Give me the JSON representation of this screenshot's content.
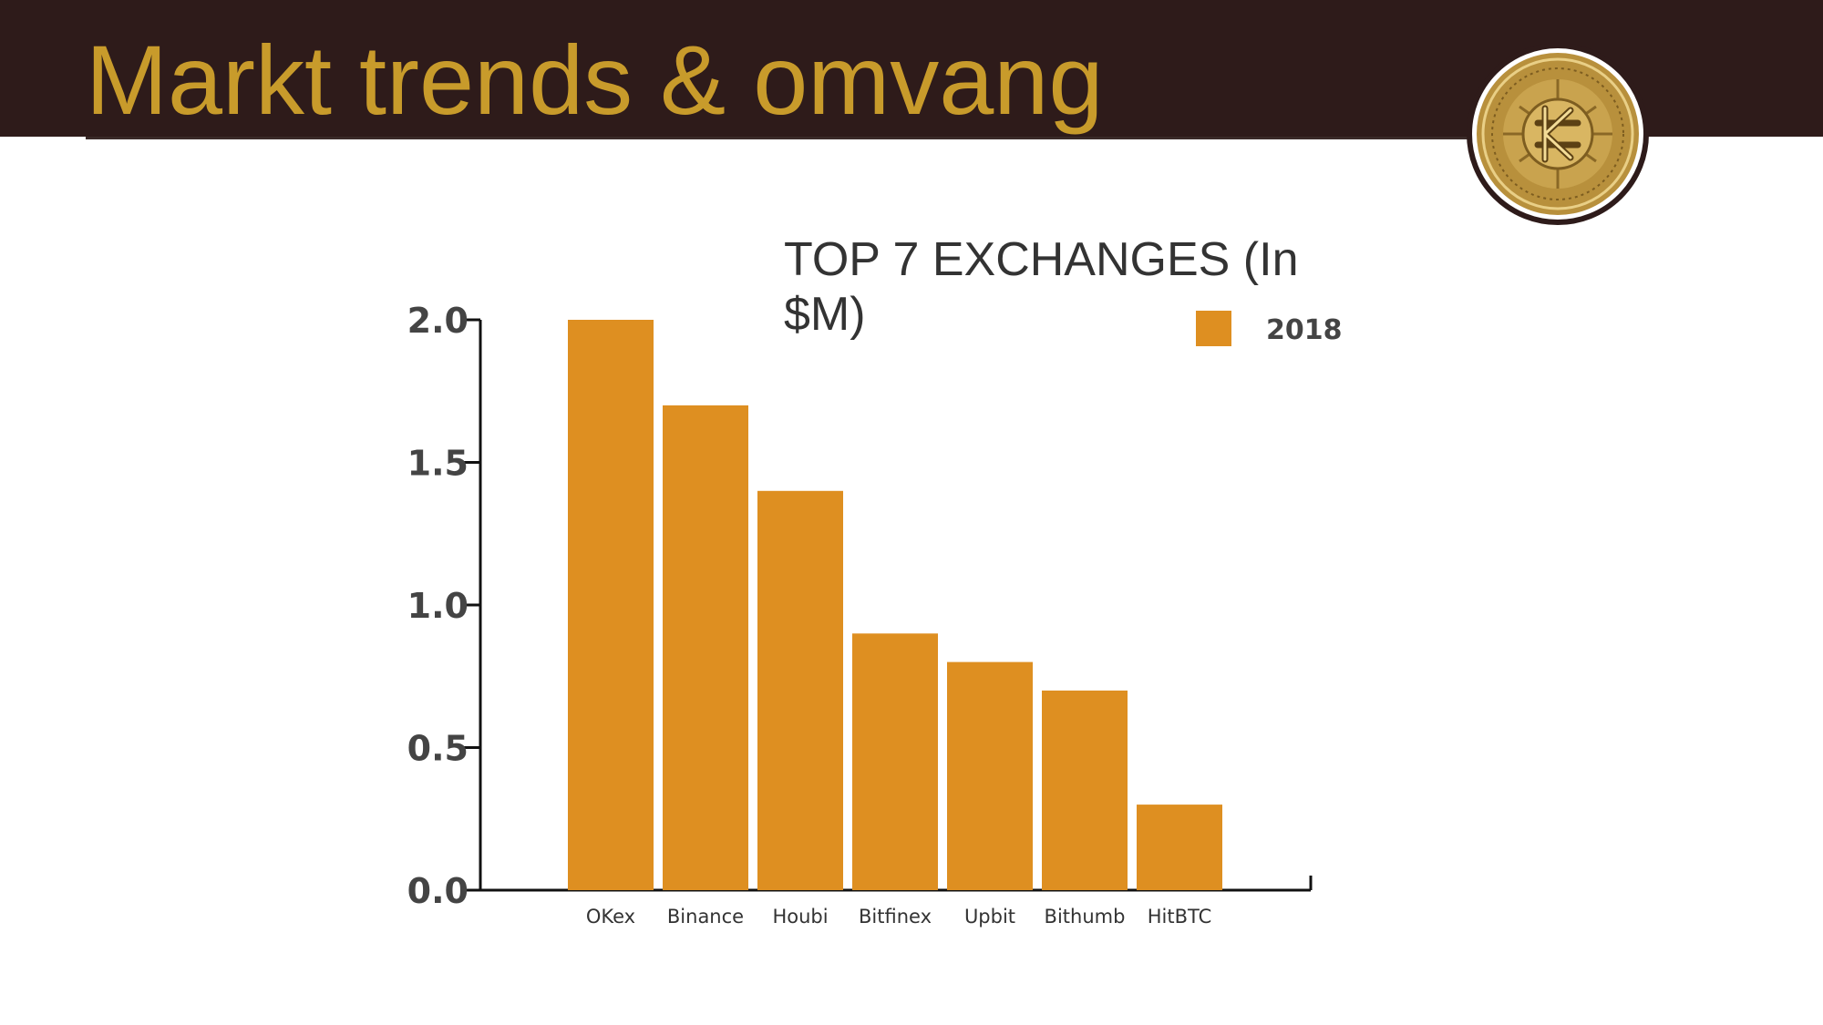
{
  "slide": {
    "title": "Markt trends & omvang"
  },
  "colors": {
    "header_background": "#2e1b1a",
    "title_gold": "#c89b2b",
    "bar_orange": "#de8f21",
    "axis_text": "#444444",
    "coin_gold": "#b8903c"
  },
  "logo": {
    "icon": "gold-coin-k-icon"
  },
  "chart_data": {
    "type": "bar",
    "title": "TOP 7 EXCHANGES (In $M)",
    "categories": [
      "OKex",
      "Binance",
      "Houbi",
      "Bitfinex",
      "Upbit",
      "Bithumb",
      "HitBTC"
    ],
    "series": [
      {
        "name": "2018",
        "values": [
          2.0,
          1.7,
          1.4,
          0.9,
          0.8,
          0.7,
          0.3
        ]
      }
    ],
    "yticks": [
      "0.0",
      "0.5",
      "1.0",
      "1.5",
      "2.0"
    ],
    "ylim": [
      0,
      2.0
    ],
    "xlabel": "",
    "ylabel": "",
    "grid": false,
    "legend_position": "top-right"
  }
}
